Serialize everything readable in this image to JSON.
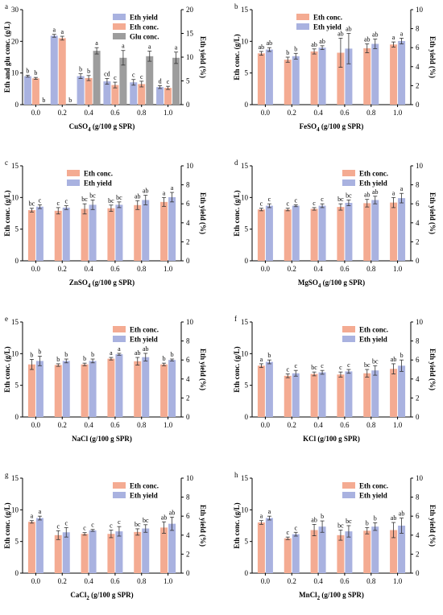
{
  "colors": {
    "conc": "#f4ab92",
    "yield": "#a9b2e0",
    "glu": "#9d9d9d",
    "err": "#333333"
  },
  "chart_data": [
    {
      "type": "bar",
      "panel": "a",
      "xlabel_main": "CuSO",
      "xlabel_sub": "4",
      "xlabel_rest": " (g/100 g SPR)",
      "ylabel_left": "Eth and glu conc. (g/L)",
      "ylabel_right": "Eth yield (%)",
      "ylim_left": [
        0,
        30
      ],
      "yticks_left": [
        0,
        10,
        20,
        30
      ],
      "ylim_right": [
        0,
        20
      ],
      "yticks_right": [
        0,
        5,
        10,
        15,
        20
      ],
      "legend_position": "top-right",
      "categories": [
        "0.0",
        "0.2",
        "0.4",
        "0.6",
        "0.8",
        "1.0"
      ],
      "series": [
        {
          "name": "Eth yield",
          "key": "yield",
          "axis": "right",
          "values": [
            6.0,
            14.5,
            6.0,
            4.9,
            4.7,
            3.7
          ],
          "errors": [
            0.2,
            0.3,
            0.5,
            0.6,
            0.6,
            0.3
          ],
          "labels": [
            "b",
            "a",
            "b",
            "cd",
            "c",
            "d"
          ]
        },
        {
          "name": "Eth conc.",
          "key": "conc",
          "axis": "left",
          "values": [
            8.3,
            21.0,
            8.4,
            6.2,
            6.5,
            5.3
          ],
          "errors": [
            0.3,
            0.6,
            0.8,
            0.9,
            0.9,
            0.5
          ],
          "labels": [
            "b",
            "a",
            "b",
            "c",
            "c",
            "c"
          ]
        },
        {
          "name": "Glu conc.",
          "key": "glu",
          "axis": "left",
          "values": [
            0,
            0,
            17.0,
            14.8,
            15.3,
            14.8
          ],
          "errors": [
            0,
            0,
            1.0,
            2.3,
            1.6,
            1.8
          ],
          "labels": [
            "b",
            "b",
            "a",
            "a",
            "a",
            "a"
          ]
        }
      ]
    },
    {
      "type": "bar",
      "panel": "b",
      "xlabel_main": "FeSO",
      "xlabel_sub": "4",
      "xlabel_rest": " (g/100 g SPR)",
      "ylabel_left": "Eth conc. (g/L)",
      "ylabel_right": "Eth yield (%)",
      "ylim_left": [
        0,
        15
      ],
      "yticks_left": [
        0,
        5,
        10,
        15
      ],
      "ylim_right": [
        0,
        10
      ],
      "yticks_right": [
        0,
        2,
        4,
        6,
        8,
        10
      ],
      "legend_position": "top-left",
      "categories": [
        "0.0",
        "0.2",
        "0.4",
        "0.6",
        "0.8",
        "1.0"
      ],
      "series": [
        {
          "name": "Eth conc.",
          "key": "conc",
          "axis": "left",
          "values": [
            8.1,
            7.1,
            8.4,
            8.2,
            8.9,
            9.5
          ],
          "errors": [
            0.3,
            0.4,
            0.4,
            2.3,
            0.7,
            0.4
          ],
          "labels": [
            "ab",
            "b",
            "ab",
            "ab",
            "ab",
            "a"
          ]
        },
        {
          "name": "Eth yield",
          "key": "yield",
          "axis": "right",
          "values": [
            5.8,
            5.1,
            6.0,
            5.9,
            6.4,
            6.7
          ],
          "errors": [
            0.2,
            0.3,
            0.2,
            1.6,
            0.5,
            0.3
          ],
          "labels": [
            "ab",
            "b",
            "ab",
            "ab",
            "ab",
            "a"
          ]
        }
      ]
    },
    {
      "type": "bar",
      "panel": "c",
      "xlabel_main": "ZnSO",
      "xlabel_sub": "4",
      "xlabel_rest": " (g/100 g SPR)",
      "ylabel_left": "Eth conc. (g/L)",
      "ylabel_right": "Eth yield (%)",
      "ylim_left": [
        0,
        15
      ],
      "yticks_left": [
        0,
        5,
        10,
        15
      ],
      "ylim_right": [
        0,
        10
      ],
      "yticks_right": [
        0,
        2,
        4,
        6,
        8,
        10
      ],
      "legend_position": "top-left",
      "categories": [
        "0.0",
        "0.2",
        "0.4",
        "0.6",
        "0.8",
        "1.0"
      ],
      "series": [
        {
          "name": "Eth conc.",
          "key": "conc",
          "axis": "left",
          "values": [
            8.0,
            7.9,
            8.2,
            8.3,
            8.8,
            9.3
          ],
          "errors": [
            0.3,
            0.5,
            0.8,
            0.5,
            0.7,
            0.7
          ],
          "labels": [
            "bc",
            "c",
            "bc",
            "bc",
            "ab",
            "a"
          ]
        },
        {
          "name": "Eth yield",
          "key": "yield",
          "axis": "right",
          "values": [
            5.7,
            5.6,
            5.9,
            5.9,
            6.4,
            6.7
          ],
          "errors": [
            0.2,
            0.2,
            0.5,
            0.3,
            0.5,
            0.5
          ],
          "labels": [
            "c",
            "c",
            "bc",
            "bc",
            "ab",
            "a"
          ]
        }
      ]
    },
    {
      "type": "bar",
      "panel": "d",
      "xlabel_main": "MgSO",
      "xlabel_sub": "4",
      "xlabel_rest": " (g/100 g SPR)",
      "ylabel_left": "Eth conc. (g/L)",
      "ylabel_right": "Eth yield (%)",
      "ylim_left": [
        0,
        15
      ],
      "yticks_left": [
        0,
        5,
        10,
        15
      ],
      "ylim_right": [
        0,
        10
      ],
      "yticks_right": [
        0,
        2,
        4,
        6,
        8,
        10
      ],
      "legend_position": "top-right",
      "categories": [
        "0.0",
        "0.2",
        "0.4",
        "0.6",
        "0.8",
        "1.0"
      ],
      "series": [
        {
          "name": "Eth conc.",
          "key": "conc",
          "axis": "left",
          "values": [
            8.1,
            8.1,
            8.2,
            8.5,
            9.1,
            9.2
          ],
          "errors": [
            0.2,
            0.2,
            0.2,
            0.5,
            0.6,
            0.8
          ],
          "labels": [
            "c",
            "c",
            "c",
            "bc",
            "ab",
            "a"
          ]
        },
        {
          "name": "Eth yield",
          "key": "yield",
          "axis": "right",
          "values": [
            5.8,
            5.8,
            5.8,
            6.1,
            6.4,
            6.6
          ],
          "errors": [
            0.2,
            0.1,
            0.2,
            0.3,
            0.4,
            0.5
          ],
          "labels": [
            "c",
            "c",
            "c",
            "bc",
            "ab",
            "a"
          ]
        }
      ]
    },
    {
      "type": "bar",
      "panel": "e",
      "xlabel_main": "NaCl",
      "xlabel_sub": "",
      "xlabel_rest": " (g/100 g SPR)",
      "ylabel_left": "Eth conc. (g/L)",
      "ylabel_right": "Eth yield (%)",
      "ylim_left": [
        0,
        15
      ],
      "yticks_left": [
        0,
        5,
        10,
        15
      ],
      "ylim_right": [
        0,
        10
      ],
      "yticks_right": [
        0,
        2,
        4,
        6,
        8,
        10
      ],
      "legend_position": "top-right",
      "categories": [
        "0.0",
        "0.2",
        "0.4",
        "0.6",
        "0.8",
        "1.0"
      ],
      "series": [
        {
          "name": "Eth conc.",
          "key": "conc",
          "axis": "left",
          "values": [
            8.3,
            8.2,
            8.3,
            9.2,
            8.8,
            8.3
          ],
          "errors": [
            0.8,
            0.2,
            0.2,
            0.2,
            0.6,
            0.2
          ],
          "labels": [
            "b",
            "b",
            "b",
            "a",
            "ab",
            "b"
          ]
        },
        {
          "name": "Eth yield",
          "key": "yield",
          "axis": "right",
          "values": [
            5.9,
            5.9,
            5.9,
            6.6,
            6.3,
            6.0
          ],
          "errors": [
            0.5,
            0.2,
            0.2,
            0.1,
            0.4,
            0.1
          ],
          "labels": [
            "b",
            "b",
            "b",
            "a",
            "ab",
            "b"
          ]
        }
      ]
    },
    {
      "type": "bar",
      "panel": "f",
      "xlabel_main": "KCl",
      "xlabel_sub": "",
      "xlabel_rest": " (g/100 g SPR)",
      "ylabel_left": "Eth conc. (g/L)",
      "ylabel_right": "Eth yield (%)",
      "ylim_left": [
        0,
        15
      ],
      "yticks_left": [
        0,
        5,
        10,
        15
      ],
      "ylim_right": [
        0,
        10
      ],
      "yticks_right": [
        0,
        2,
        4,
        6,
        8,
        10
      ],
      "legend_position": "top-right",
      "categories": [
        "0.0",
        "0.2",
        "0.4",
        "0.6",
        "0.8",
        "1.0"
      ],
      "series": [
        {
          "name": "Eth conc.",
          "key": "conc",
          "axis": "left",
          "values": [
            8.1,
            6.5,
            6.8,
            6.7,
            6.9,
            7.6
          ],
          "errors": [
            0.3,
            0.3,
            0.3,
            0.4,
            0.6,
            0.8
          ],
          "labels": [
            "a",
            "c",
            "bc",
            "c",
            "bc",
            "ab"
          ]
        },
        {
          "name": "Eth yield",
          "key": "yield",
          "axis": "right",
          "values": [
            5.8,
            4.6,
            4.7,
            4.8,
            4.9,
            5.4
          ],
          "errors": [
            0.2,
            0.3,
            0.2,
            0.2,
            0.5,
            0.6
          ],
          "labels": [
            "b",
            "c",
            "c",
            "c",
            "bc",
            "b"
          ]
        }
      ]
    },
    {
      "type": "bar",
      "panel": "g",
      "xlabel_main": "CaCl",
      "xlabel_sub": "2",
      "xlabel_rest": " (g/100 g SPR)",
      "ylabel_left": "Eth conc. (g/L)",
      "ylabel_right": "Eth yield (%)",
      "ylim_left": [
        0,
        15
      ],
      "yticks_left": [
        0,
        5,
        10,
        15
      ],
      "ylim_right": [
        0,
        10
      ],
      "yticks_right": [
        0,
        2,
        4,
        6,
        8,
        10
      ],
      "legend_position": "top-right",
      "categories": [
        "0.0",
        "0.2",
        "0.4",
        "0.6",
        "0.8",
        "1.0"
      ],
      "series": [
        {
          "name": "Eth conc.",
          "key": "conc",
          "axis": "left",
          "values": [
            8.1,
            6.0,
            6.2,
            6.2,
            6.5,
            7.2
          ],
          "errors": [
            0.2,
            0.7,
            0.2,
            0.6,
            0.5,
            0.9
          ],
          "labels": [
            "a",
            "c",
            "c",
            "c",
            "bc",
            "ab"
          ]
        },
        {
          "name": "Eth yield",
          "key": "yield",
          "axis": "right",
          "values": [
            5.8,
            4.3,
            4.5,
            4.4,
            4.7,
            5.2
          ],
          "errors": [
            0.2,
            0.5,
            0.1,
            0.5,
            0.4,
            0.7
          ],
          "labels": [
            "a",
            "c",
            "c",
            "c",
            "bc",
            "ab"
          ]
        }
      ]
    },
    {
      "type": "bar",
      "panel": "h",
      "xlabel_main": "MnCl",
      "xlabel_sub": "2",
      "xlabel_rest": " (g/100 g SPR)",
      "ylabel_left": "Eth conc. (g/L)",
      "ylabel_right": "Eth yield (%)",
      "ylim_left": [
        0,
        15
      ],
      "yticks_left": [
        0,
        5,
        10,
        15
      ],
      "ylim_right": [
        0,
        10
      ],
      "yticks_right": [
        0,
        2,
        4,
        6,
        8,
        10
      ],
      "legend_position": "top-right",
      "categories": [
        "0.0",
        "0.2",
        "0.4",
        "0.6",
        "0.8",
        "1.0"
      ],
      "series": [
        {
          "name": "Eth conc.",
          "key": "conc",
          "axis": "left",
          "values": [
            8.0,
            5.5,
            6.8,
            6.0,
            6.7,
            6.8
          ],
          "errors": [
            0.3,
            0.2,
            0.9,
            0.8,
            0.5,
            1.2
          ],
          "labels": [
            "a",
            "c",
            "ab",
            "bc",
            "b",
            "ab"
          ]
        },
        {
          "name": "Eth yield",
          "key": "yield",
          "axis": "right",
          "values": [
            5.8,
            4.1,
            4.9,
            4.4,
            4.9,
            5.0
          ],
          "errors": [
            0.2,
            0.2,
            0.6,
            0.6,
            0.4,
            0.8
          ],
          "labels": [
            "a",
            "c",
            "b",
            "bc",
            "b",
            "ab"
          ]
        }
      ]
    }
  ]
}
